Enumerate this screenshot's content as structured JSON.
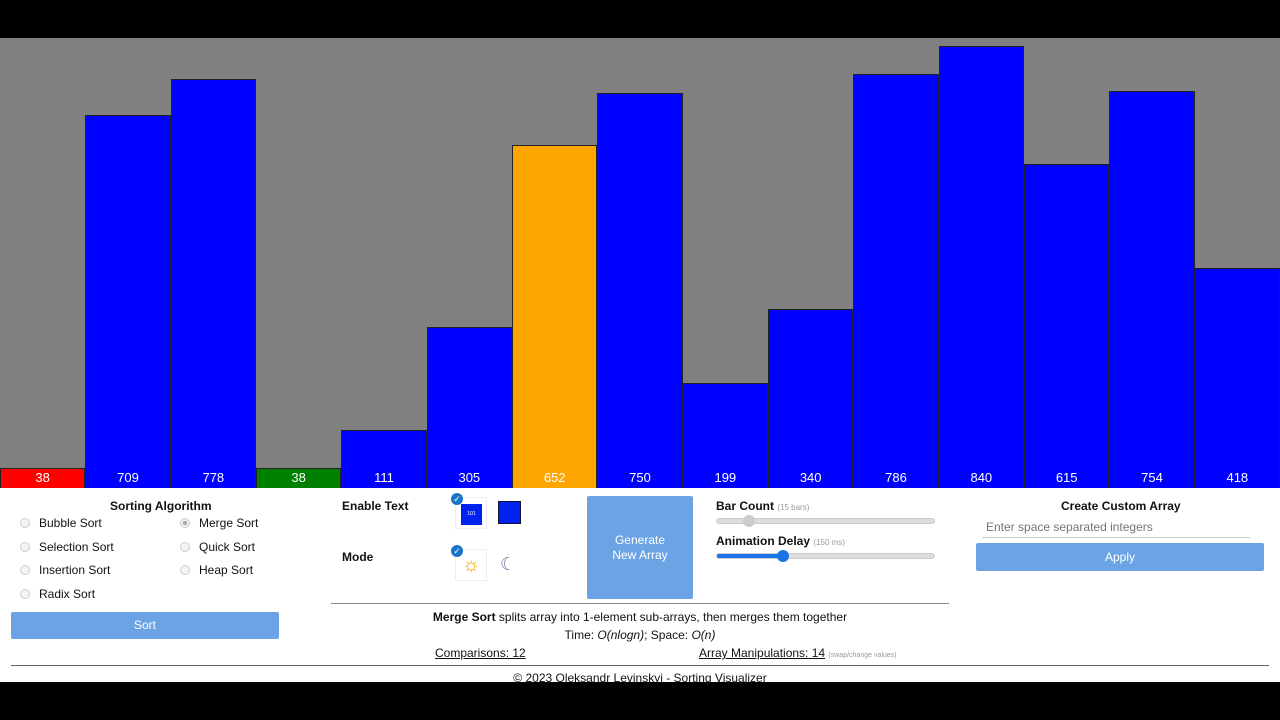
{
  "bars": [
    {
      "value": 38,
      "state": "compare-red"
    },
    {
      "value": 709,
      "state": "default"
    },
    {
      "value": 778,
      "state": "default"
    },
    {
      "value": 38,
      "state": "sorted-green"
    },
    {
      "value": 111,
      "state": "default"
    },
    {
      "value": 305,
      "state": "default"
    },
    {
      "value": 652,
      "state": "active-orange"
    },
    {
      "value": 750,
      "state": "default"
    },
    {
      "value": 199,
      "state": "default"
    },
    {
      "value": 340,
      "state": "default"
    },
    {
      "value": 786,
      "state": "default"
    },
    {
      "value": 840,
      "state": "default"
    },
    {
      "value": 615,
      "state": "default"
    },
    {
      "value": 754,
      "state": "default"
    },
    {
      "value": 418,
      "state": "default"
    }
  ],
  "colors": {
    "default": "#0000ff",
    "compare-red": "#ff0000",
    "sorted-green": "#008000",
    "active-orange": "#ffa500",
    "background": "#808080",
    "accent": "#6ba3e4"
  },
  "algorithms": {
    "title": "Sorting Algorithm",
    "items": [
      "Bubble Sort",
      "Selection Sort",
      "Insertion Sort",
      "Radix Sort",
      "Merge Sort",
      "Quick Sort",
      "Heap Sort"
    ],
    "selected": "Merge Sort",
    "sort_label": "Sort"
  },
  "options": {
    "enable_text": "Enable Text",
    "text_icon_label": "101",
    "mode": "Mode",
    "generate": "Generate New Array"
  },
  "sliders": {
    "bar_count": "Bar Count",
    "bar_count_note": "(15 bars)",
    "bar_count_value": 15,
    "delay": "Animation Delay",
    "delay_note": "(150 ms)",
    "delay_value": 150
  },
  "custom": {
    "title": "Create Custom Array",
    "placeholder": "Enter space separated integers",
    "apply": "Apply"
  },
  "info": {
    "algo": "Merge Sort",
    "desc": " splits array into 1-element sub-arrays, then merges them together",
    "time_label": "Time: ",
    "time": "O(nlogn)",
    "space_label": "; Space: ",
    "space": "O(n)",
    "comparisons": "Comparisons: 12",
    "manipulations": "Array Manipulations: 14",
    "manip_note": "(swap/change values)"
  },
  "footer": "© 2023 Oleksandr Levinskyi - Sorting Visualizer"
}
